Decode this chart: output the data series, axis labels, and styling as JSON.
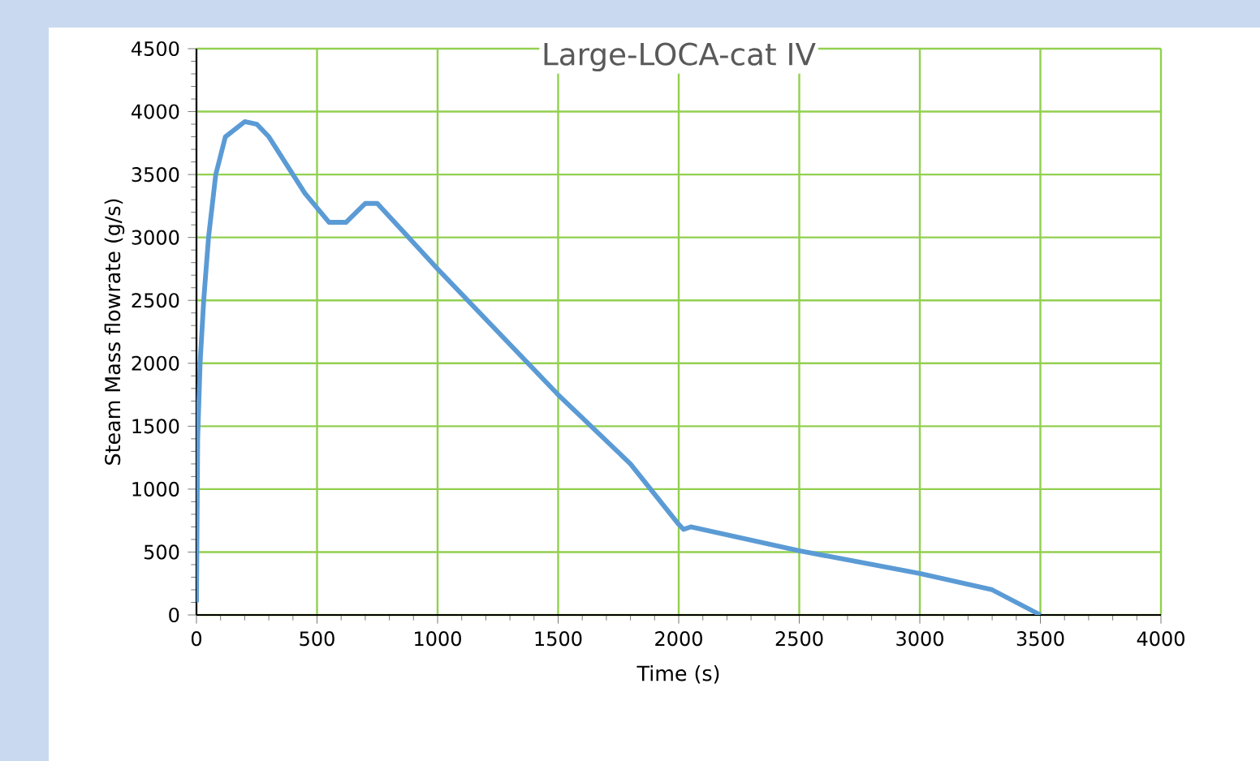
{
  "chart_data": {
    "type": "line",
    "title": "Large-LOCA-cat IV",
    "xlabel": "Time (s)",
    "ylabel": "Steam Mass flowrate (g/s)",
    "x": [
      0,
      5,
      15,
      30,
      50,
      80,
      120,
      200,
      250,
      300,
      400,
      450,
      550,
      620,
      700,
      750,
      1000,
      1500,
      1800,
      2000,
      2020,
      2050,
      2500,
      3000,
      3300,
      3500
    ],
    "series": [
      {
        "color": "#5b9bd5",
        "values": [
          100,
          1400,
          2000,
          2500,
          3000,
          3500,
          3800,
          3920,
          3900,
          3800,
          3500,
          3350,
          3120,
          3120,
          3270,
          3270,
          2750,
          1750,
          1200,
          720,
          680,
          700,
          510,
          330,
          200,
          0
        ]
      }
    ],
    "xlim": [
      0,
      4000
    ],
    "ylim": [
      0,
      4500
    ],
    "xticks": [
      0,
      500,
      1000,
      1500,
      2000,
      2500,
      3000,
      3500,
      4000
    ],
    "yticks": [
      0,
      500,
      1000,
      1500,
      2000,
      2500,
      3000,
      3500,
      4000,
      4500
    ],
    "grid": true,
    "marker": "none",
    "line_style": "solid"
  }
}
